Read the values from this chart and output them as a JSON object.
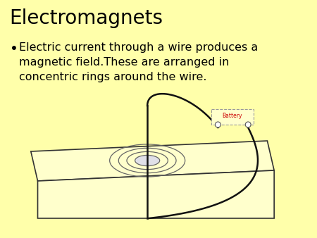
{
  "background_color": "#FFFFAA",
  "title": "Electromagnets",
  "title_fontsize": 20,
  "bullet_text_line1": "Electric current through a wire produces a",
  "bullet_text_line2": "magnetic field.These are arranged in",
  "bullet_text_line3": "concentric rings around the wire.",
  "bullet_fontsize": 11.5,
  "plate_face_color": "#FFFFCC",
  "plate_edge_color": "#333333",
  "plate_lw": 1.2,
  "wire_color": "#111111",
  "wire_lw": 1.8,
  "battery_face_color": "#FFFFCC",
  "battery_border_color": "#999999",
  "battery_text_color": "#CC0000",
  "battery_text": "Battery",
  "battery_fontsize": 5.5,
  "ring_edge_color": "#666666",
  "ring_face_color": "#E0E0E8",
  "ring_lw": 0.9,
  "terminal_face": "#FFFFFF",
  "terminal_edge": "#555555"
}
